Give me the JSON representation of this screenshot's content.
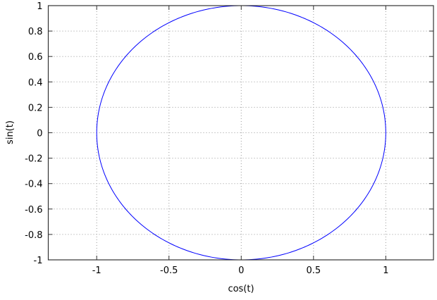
{
  "chart_data": {
    "type": "line",
    "title": "",
    "xlabel": "cos(t)",
    "ylabel": "sin(t)",
    "xlim": [
      -1.335,
      1.33
    ],
    "ylim": [
      -1,
      1
    ],
    "xticks": [
      -1,
      -0.5,
      0,
      0.5,
      1
    ],
    "xtick_labels": [
      "-1",
      "-0.5",
      "0",
      "0.5",
      "1"
    ],
    "yticks": [
      -1,
      -0.8,
      -0.6,
      -0.4,
      -0.2,
      0,
      0.2,
      0.4,
      0.6,
      0.8,
      1
    ],
    "ytick_labels": [
      "-1",
      "-0.8",
      "-0.6",
      "-0.4",
      "-0.2",
      "0",
      "0.2",
      "0.4",
      "0.6",
      "0.8",
      "1"
    ],
    "grid": true,
    "grid_style": "dotted",
    "series": [
      {
        "parametric": "x = cos(t), y = sin(t), t in [0, 2π]",
        "color": "#0000ff"
      }
    ]
  }
}
